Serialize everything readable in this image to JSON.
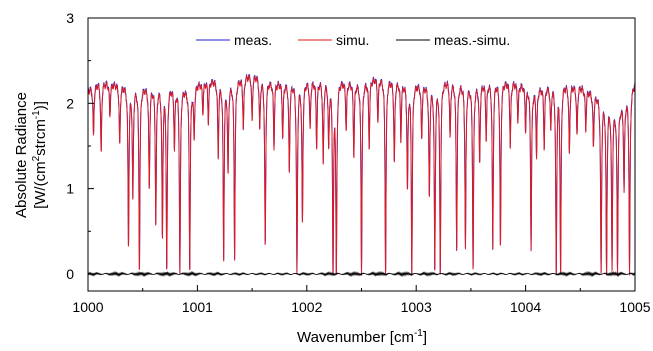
{
  "chart_data": {
    "type": "line",
    "title": "",
    "xlabel": {
      "main": "Wavenumber [cm",
      "sup": "-1",
      "tail": "]"
    },
    "ylabel": {
      "line1": "Absolute Radiance",
      "line2_a": "[W/(cm",
      "line2_sup1": "2",
      "line2_b": "strcm",
      "line2_sup2": "-1",
      "line2_c": ")]"
    },
    "xlim": [
      1000,
      1005
    ],
    "ylim": [
      -0.2,
      3
    ],
    "x_ticks": [
      1000,
      1001,
      1002,
      1003,
      1004,
      1005
    ],
    "x_tick_labels": [
      "1000",
      "1001",
      "1002",
      "1003",
      "1004",
      "1005"
    ],
    "y_ticks": [
      0,
      1,
      2,
      3
    ],
    "y_tick_labels": [
      "0",
      "1",
      "2",
      "3"
    ],
    "legend_position": "top-center",
    "series": [
      {
        "name": "meas.",
        "color": "#1f1fcf"
      },
      {
        "name": "simu.",
        "color": "#e31a1c"
      },
      {
        "name": "meas.-simu.",
        "color": "#000000"
      }
    ],
    "baseline": [
      [
        1000.0,
        2.15
      ],
      [
        1000.1,
        2.25
      ],
      [
        1000.3,
        2.22
      ],
      [
        1000.5,
        2.2
      ],
      [
        1000.7,
        2.22
      ],
      [
        1000.9,
        2.18
      ],
      [
        1001.1,
        2.28
      ],
      [
        1001.3,
        2.25
      ],
      [
        1001.5,
        2.35
      ],
      [
        1001.7,
        2.25
      ],
      [
        1001.9,
        2.25
      ],
      [
        1002.1,
        2.28
      ],
      [
        1002.3,
        2.27
      ],
      [
        1002.5,
        2.25
      ],
      [
        1002.65,
        2.32
      ],
      [
        1002.9,
        2.25
      ],
      [
        1003.1,
        2.22
      ],
      [
        1003.3,
        2.28
      ],
      [
        1003.5,
        2.22
      ],
      [
        1003.7,
        2.28
      ],
      [
        1003.9,
        2.25
      ],
      [
        1004.1,
        2.18
      ],
      [
        1004.3,
        2.25
      ],
      [
        1004.5,
        2.2
      ],
      [
        1004.7,
        2.08
      ],
      [
        1004.85,
        1.95
      ],
      [
        1005.0,
        2.25
      ]
    ],
    "absorption_lines": [
      [
        1000.05,
        1.6
      ],
      [
        1000.12,
        1.4
      ],
      [
        1000.2,
        1.85
      ],
      [
        1000.29,
        1.5
      ],
      [
        1000.37,
        0.35
      ],
      [
        1000.41,
        0.9
      ],
      [
        1000.47,
        0.05
      ],
      [
        1000.56,
        1.0
      ],
      [
        1000.62,
        0.6
      ],
      [
        1000.68,
        0.45
      ],
      [
        1000.72,
        0.05
      ],
      [
        1000.79,
        1.5
      ],
      [
        1000.84,
        0.0
      ],
      [
        1000.93,
        0.05
      ],
      [
        1000.97,
        1.6
      ],
      [
        1001.05,
        1.9
      ],
      [
        1001.1,
        1.8
      ],
      [
        1001.19,
        1.4
      ],
      [
        1001.24,
        0.2
      ],
      [
        1001.28,
        1.2
      ],
      [
        1001.34,
        0.2
      ],
      [
        1001.42,
        1.7
      ],
      [
        1001.5,
        1.8
      ],
      [
        1001.57,
        1.7
      ],
      [
        1001.62,
        0.3
      ],
      [
        1001.7,
        1.5
      ],
      [
        1001.78,
        1.6
      ],
      [
        1001.84,
        1.2
      ],
      [
        1001.91,
        0.0
      ],
      [
        1001.96,
        0.6
      ],
      [
        1002.03,
        1.7
      ],
      [
        1002.09,
        1.5
      ],
      [
        1002.15,
        1.3
      ],
      [
        1002.2,
        1.5
      ],
      [
        1002.24,
        0.0
      ],
      [
        1002.27,
        0.0
      ],
      [
        1002.36,
        1.7
      ],
      [
        1002.43,
        1.4
      ],
      [
        1002.5,
        0.0
      ],
      [
        1002.57,
        1.5
      ],
      [
        1002.65,
        1.8
      ],
      [
        1002.72,
        0.0
      ],
      [
        1002.8,
        1.3
      ],
      [
        1002.86,
        1.6
      ],
      [
        1002.92,
        1.0
      ],
      [
        1002.96,
        0.0
      ],
      [
        1003.05,
        1.6
      ],
      [
        1003.12,
        0.9
      ],
      [
        1003.17,
        0.05
      ],
      [
        1003.22,
        0.0
      ],
      [
        1003.31,
        1.6
      ],
      [
        1003.37,
        0.3
      ],
      [
        1003.45,
        0.3
      ],
      [
        1003.52,
        0.05
      ],
      [
        1003.58,
        1.3
      ],
      [
        1003.64,
        1.6
      ],
      [
        1003.7,
        0.3
      ],
      [
        1003.77,
        0.3
      ],
      [
        1003.86,
        1.5
      ],
      [
        1003.93,
        1.8
      ],
      [
        1004.0,
        1.7
      ],
      [
        1004.05,
        0.3
      ],
      [
        1004.1,
        1.4
      ],
      [
        1004.17,
        1.5
      ],
      [
        1004.23,
        1.7
      ],
      [
        1004.28,
        0.0
      ],
      [
        1004.32,
        0.0
      ],
      [
        1004.4,
        1.4
      ],
      [
        1004.47,
        1.6
      ],
      [
        1004.55,
        1.7
      ],
      [
        1004.62,
        1.5
      ],
      [
        1004.69,
        0.0
      ],
      [
        1004.74,
        0.0
      ],
      [
        1004.79,
        0.1
      ],
      [
        1004.84,
        0.05
      ],
      [
        1004.9,
        1.0
      ],
      [
        1004.95,
        0.0
      ]
    ],
    "residual_level": 0.0,
    "residual_noise": 0.01
  }
}
